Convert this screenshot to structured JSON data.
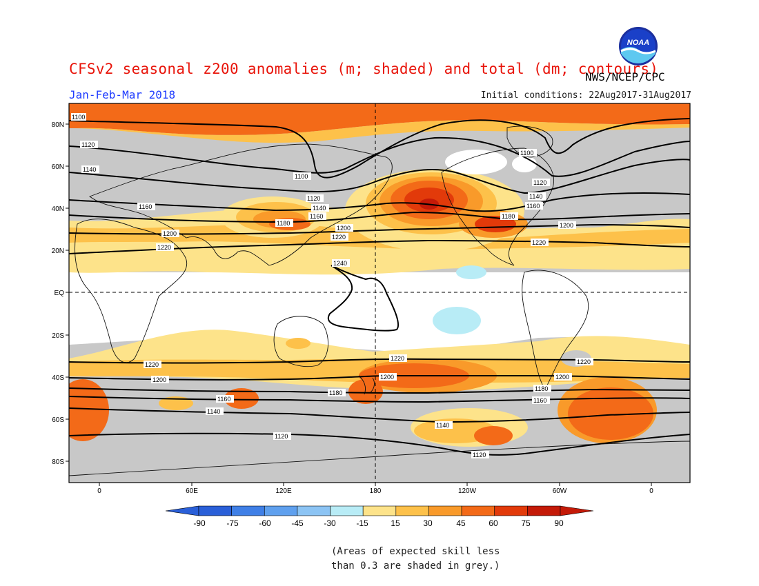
{
  "title": "CFSv2 seasonal z200 anomalies (m; shaded) and total (dm; contours)",
  "agency": "NWS/NCEP/CPC",
  "logo_text": "NOAA",
  "period": "Jan-Feb-Mar 2018",
  "initial_conditions": "Initial conditions: 22Aug2017-31Aug2017",
  "lat_labels": [
    "80N",
    "60N",
    "40N",
    "20N",
    "EQ",
    "20S",
    "40S",
    "60S",
    "80S"
  ],
  "lon_labels": [
    "0",
    "60E",
    "120E",
    "180",
    "120W",
    "60W",
    "0"
  ],
  "colorbar": {
    "labels": [
      "-90",
      "-75",
      "-60",
      "-45",
      "-30",
      "-15",
      "15",
      "30",
      "45",
      "60",
      "75",
      "90"
    ],
    "colors": [
      "#2a5fd8",
      "#3f7fe6",
      "#5fa0ee",
      "#8cc4f4",
      "#b8ecf6",
      "#ffffff",
      "#fde38a",
      "#fdc14a",
      "#f99a2a",
      "#f36a18",
      "#e23a0a",
      "#c41a08"
    ]
  },
  "contour_labels": [
    "1100",
    "1120",
    "1140",
    "1160",
    "1180",
    "1200",
    "1220",
    "1240"
  ],
  "colors": {
    "title": "#e8140a",
    "period": "#1f3cff",
    "grey_mask": "#c8c8c8",
    "pale_yellow": "#fde38a",
    "light_orange": "#fdc14a",
    "orange": "#f99a2a",
    "orange_red": "#f36a18",
    "red": "#e23a0a",
    "dark_red": "#c41a08",
    "light_blue": "#b8ecf6"
  },
  "note_lines": [
    "(Areas of expected skill less",
    "than 0.3 are shaded in grey.)"
  ]
}
